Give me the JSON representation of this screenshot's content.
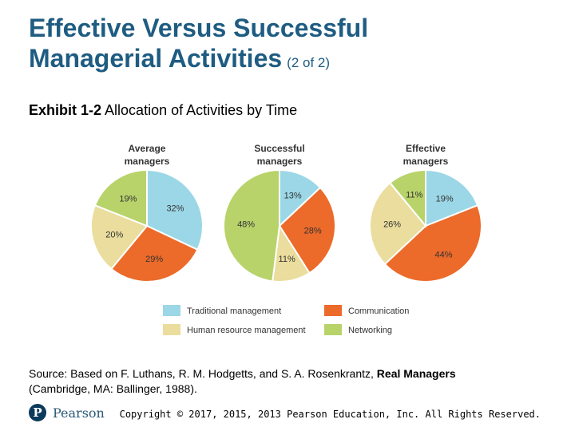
{
  "title": {
    "main_line1": "Effective Versus Successful",
    "main_line2": "Managerial Activities",
    "suffix": "(2 of 2)"
  },
  "exhibit": {
    "label": "Exhibit 1-2",
    "text": "Allocation of Activities by Time"
  },
  "colors": {
    "traditional": "#9bd7e6",
    "communication": "#ec6a2a",
    "human_resource": "#eadd9d",
    "networking": "#b8d36a"
  },
  "chart_data": [
    {
      "type": "pie",
      "title": "Average managers",
      "title_lines": [
        "Average",
        "managers"
      ],
      "slices": [
        {
          "name": "Traditional management",
          "value": 32,
          "label": "32%",
          "color": "#9bd7e6"
        },
        {
          "name": "Communication",
          "value": 29,
          "label": "29%",
          "color": "#ec6a2a"
        },
        {
          "name": "Human resource management",
          "value": 20,
          "label": "20%",
          "color": "#eadd9d"
        },
        {
          "name": "Networking",
          "value": 19,
          "label": "19%",
          "color": "#b8d36a"
        }
      ]
    },
    {
      "type": "pie",
      "title": "Successful managers",
      "title_lines": [
        "Successful",
        "managers"
      ],
      "slices": [
        {
          "name": "Traditional management",
          "value": 13,
          "label": "13%",
          "color": "#9bd7e6"
        },
        {
          "name": "Communication",
          "value": 28,
          "label": "28%",
          "color": "#ec6a2a"
        },
        {
          "name": "Human resource management",
          "value": 11,
          "label": "11%",
          "color": "#eadd9d"
        },
        {
          "name": "Networking",
          "value": 48,
          "label": "48%",
          "color": "#b8d36a"
        }
      ]
    },
    {
      "type": "pie",
      "title": "Effective managers",
      "title_lines": [
        "Effective",
        "managers"
      ],
      "slices": [
        {
          "name": "Traditional management",
          "value": 19,
          "label": "19%",
          "color": "#9bd7e6"
        },
        {
          "name": "Communication",
          "value": 44,
          "label": "44%",
          "color": "#ec6a2a"
        },
        {
          "name": "Human resource management",
          "value": 26,
          "label": "26%",
          "color": "#eadd9d"
        },
        {
          "name": "Networking",
          "value": 11,
          "label": "11%",
          "color": "#b8d36a"
        }
      ]
    }
  ],
  "legend": [
    {
      "label": "Traditional management",
      "color": "#9bd7e6"
    },
    {
      "label": "Communication",
      "color": "#ec6a2a"
    },
    {
      "label": "Human resource management",
      "color": "#eadd9d"
    },
    {
      "label": "Networking",
      "color": "#b8d36a"
    }
  ],
  "source": {
    "prefix": "Source: Based on F. Luthans, R. M. Hodgetts, and S. A. Rosenkrantz,",
    "book": "Real Managers",
    "suffix": "(Cambridge, MA: Ballinger, 1988)."
  },
  "footer": {
    "logo_letter": "P",
    "logo_word": "Pearson",
    "copyright": "Copyright © 2017, 2015, 2013 Pearson Education, Inc. All Rights Reserved."
  }
}
